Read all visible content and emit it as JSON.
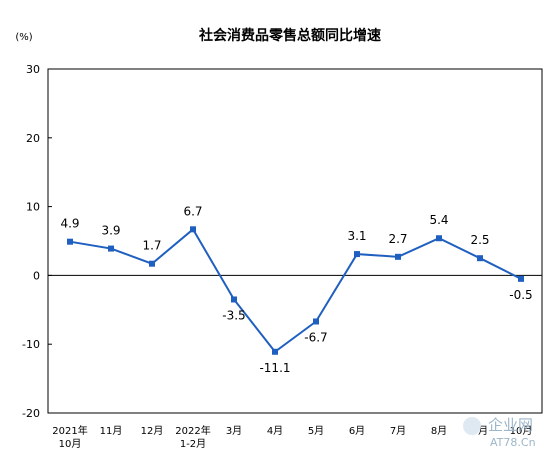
{
  "chart_data": {
    "type": "line",
    "title": "社会消费品零售总额同比增速",
    "ylabel": "(%)",
    "ylim": [
      -20,
      30
    ],
    "yticks": [
      -20,
      -10,
      0,
      10,
      20,
      30
    ],
    "categories": [
      [
        "2021年",
        "10月"
      ],
      [
        "11月"
      ],
      [
        "12月"
      ],
      [
        "2022年",
        "1-2月"
      ],
      [
        "3月"
      ],
      [
        "4月"
      ],
      [
        "5月"
      ],
      [
        "6月"
      ],
      [
        "7月"
      ],
      [
        "8月"
      ],
      [
        "9月"
      ],
      [
        "10月"
      ]
    ],
    "series": [
      {
        "values": [
          4.9,
          3.9,
          1.7,
          6.7,
          -3.5,
          -11.1,
          -6.7,
          3.1,
          2.7,
          5.4,
          2.5,
          -0.5
        ],
        "labels": [
          "4.9",
          "3.9",
          "1.7",
          "6.7",
          "-3.5",
          "-11.1",
          "-6.7",
          "3.1",
          "2.7",
          "5.4",
          "2.5",
          "-0.5"
        ],
        "color": "#1f5fbf"
      }
    ],
    "grid": false,
    "legend": "none"
  },
  "watermark": {
    "text": "企业网",
    "subtext": "AT78.Cn"
  }
}
